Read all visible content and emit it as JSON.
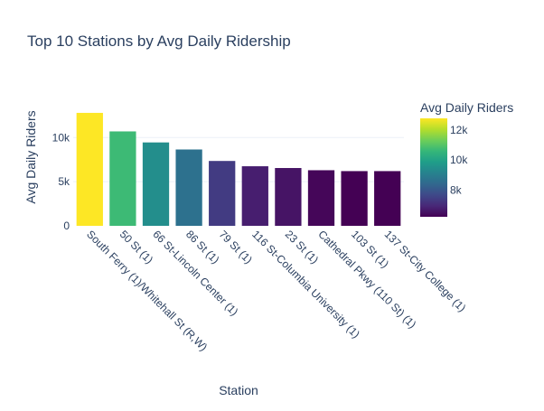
{
  "chart_data": {
    "type": "bar",
    "title": "Top 10 Stations by Avg Daily Ridership",
    "xlabel": "Station",
    "ylabel": "Avg Daily Riders",
    "categories": [
      "South Ferry (1)/Whitehall St (R,W)",
      "50 St (1)",
      "66 St-Lincoln Center (1)",
      "86 St (1)",
      "79 St (1)",
      "116 St-Columbia University (1)",
      "23 St (1)",
      "Cathedral Pkwy (110 St) (1)",
      "103 St (1)",
      "137 St-City College (1)"
    ],
    "values": [
      12800,
      10700,
      9450,
      8650,
      7350,
      6750,
      6550,
      6300,
      6200,
      6200
    ],
    "ylim": [
      0,
      13000
    ],
    "yticks": [
      0,
      5000,
      10000
    ],
    "ytick_labels": [
      "0",
      "5k",
      "10k"
    ],
    "grid": true,
    "colorbar": {
      "title": "Avg Daily Riders",
      "colorscale": "Viridis",
      "cmin": 6200,
      "cmax": 12800,
      "ticks": [
        8000,
        10000,
        12000
      ],
      "tick_labels": [
        "8k",
        "10k",
        "12k"
      ]
    }
  }
}
